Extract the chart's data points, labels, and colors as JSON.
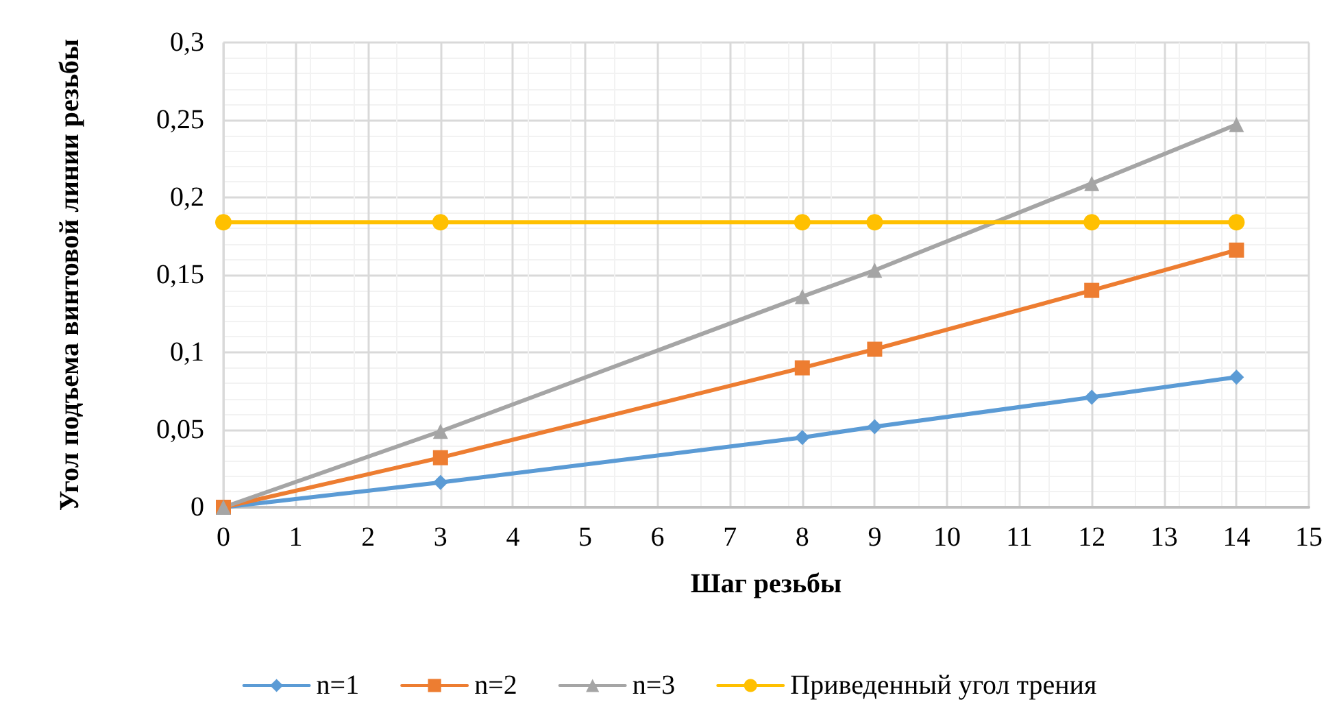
{
  "chart_data": {
    "type": "line",
    "xlabel": "Шаг резьбы",
    "ylabel": "Угол подъема винтовой линии резьбы",
    "x": [
      0,
      3,
      8,
      9,
      12,
      14
    ],
    "series": [
      {
        "name": "n=1",
        "color": "#5b9bd5",
        "marker": "diamond",
        "values": [
          0,
          0.016,
          0.045,
          0.052,
          0.071,
          0.084
        ]
      },
      {
        "name": "n=2",
        "color": "#ed7d31",
        "marker": "square",
        "values": [
          0,
          0.032,
          0.09,
          0.102,
          0.14,
          0.166
        ]
      },
      {
        "name": "n=3",
        "color": "#a5a5a5",
        "marker": "triangle",
        "values": [
          0,
          0.049,
          0.136,
          0.153,
          0.209,
          0.247
        ]
      },
      {
        "name": "Приведенный угол трения",
        "color": "#ffc000",
        "marker": "circle",
        "values": [
          0.184,
          0.184,
          0.184,
          0.184,
          0.184,
          0.184
        ]
      }
    ],
    "xlim": [
      0,
      15
    ],
    "xticks": [
      0,
      1,
      2,
      3,
      4,
      5,
      6,
      7,
      8,
      9,
      10,
      11,
      12,
      13,
      14,
      15
    ],
    "ylim": [
      0,
      0.3
    ],
    "yticks": [
      0,
      {
        "value": 0.05,
        "label": "0,05"
      },
      {
        "value": 0.1,
        "label": "0,1"
      },
      {
        "value": 0.15,
        "label": "0,15"
      },
      {
        "value": 0.2,
        "label": "0,2"
      },
      {
        "value": 0.25,
        "label": "0,25"
      },
      {
        "value": 0.3,
        "label": "0,3"
      }
    ],
    "grid": true,
    "legend": "bottom",
    "line_style": "solid"
  }
}
